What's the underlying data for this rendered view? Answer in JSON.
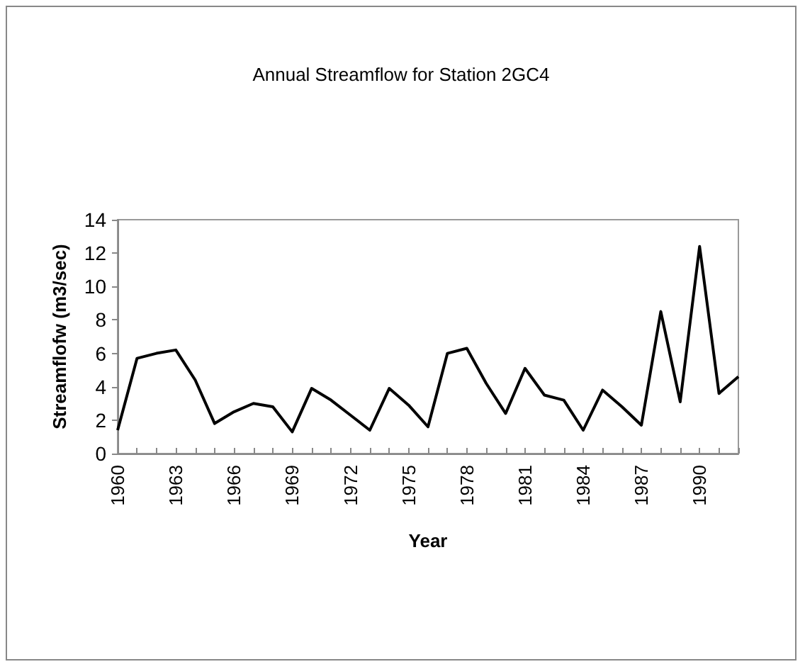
{
  "chart_data": {
    "type": "line",
    "title": "Annual Streamflow for Station 2GC4",
    "xlabel": "Year",
    "ylabel": "Streamflofw (m3/sec)",
    "categories": [
      "1960",
      null,
      null,
      "1963",
      null,
      null,
      "1966",
      null,
      null,
      "1969",
      null,
      null,
      "1972",
      null,
      null,
      "1975",
      null,
      null,
      "1978",
      null,
      null,
      "1981",
      null,
      null,
      "1984",
      null,
      null,
      "1987",
      null,
      null,
      "1990",
      null,
      null
    ],
    "series": [
      {
        "color": "#000000",
        "values": [
          1.4,
          5.7,
          6.0,
          6.2,
          4.4,
          1.8,
          2.5,
          3.0,
          2.8,
          1.3,
          3.9,
          3.2,
          2.3,
          1.4,
          3.9,
          2.9,
          1.6,
          6.0,
          6.3,
          4.2,
          2.4,
          5.1,
          3.5,
          3.2,
          1.4,
          3.8,
          2.8,
          1.7,
          8.5,
          3.1,
          12.4,
          3.6,
          4.6
        ]
      }
    ],
    "ylim": [
      0,
      14
    ],
    "yticks": [
      0,
      2,
      4,
      6,
      8,
      10,
      12,
      14
    ],
    "grid": false,
    "marker": "none",
    "line_style": "solid"
  }
}
